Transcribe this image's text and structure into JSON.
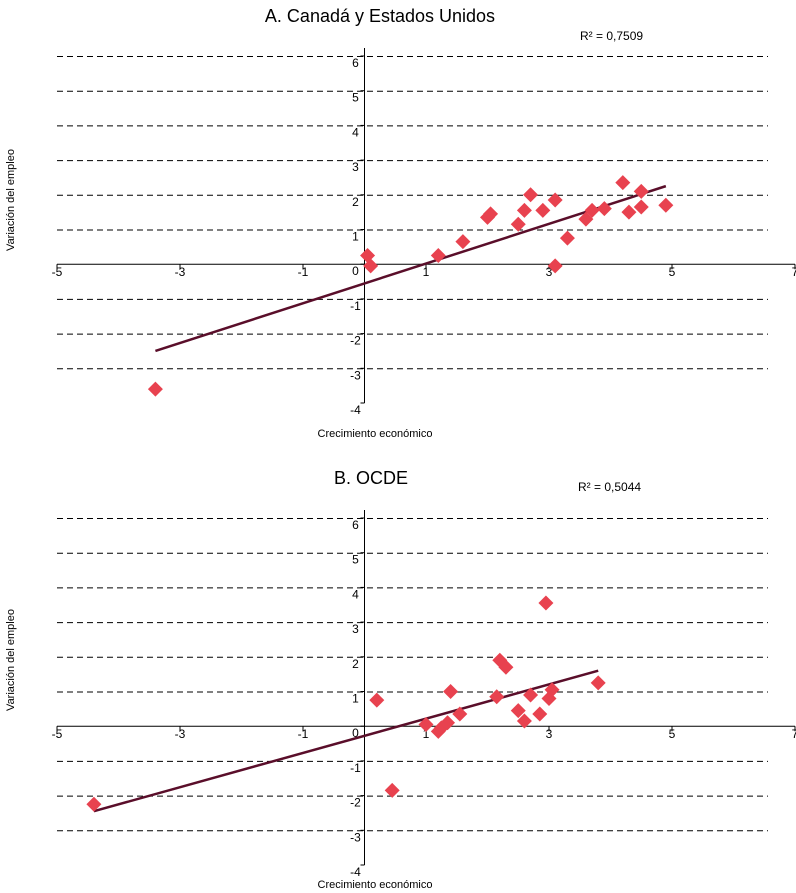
{
  "colors": {
    "marker": "#e8424f",
    "trendline": "#5a0e2a",
    "axis": "#000000",
    "grid": "#000000"
  },
  "chart_data": [
    {
      "type": "scatter",
      "title": "A. Canadá y Estados Unidos",
      "r2_label": "R² = 0,7509",
      "xlabel": "Crecimiento económico",
      "ylabel": "Variación del empleo",
      "xlim": [
        -5,
        7
      ],
      "ylim": [
        -4,
        6
      ],
      "x_ticks": [
        "-5",
        "-3",
        "-1",
        "1",
        "3",
        "5",
        "7"
      ],
      "y_ticks": [
        "-4",
        "-3",
        "-2",
        "-1",
        "0",
        "1",
        "2",
        "3",
        "4",
        "5",
        "6"
      ],
      "grid": "horizontal dashed",
      "trendline": {
        "x": [
          -3.4,
          4.9
        ],
        "y": [
          -2.5,
          2.25
        ]
      },
      "points": [
        {
          "x": -3.4,
          "y": -3.6
        },
        {
          "x": 0.05,
          "y": 0.25
        },
        {
          "x": 0.1,
          "y": -0.05
        },
        {
          "x": 1.2,
          "y": 0.25
        },
        {
          "x": 1.6,
          "y": 0.65
        },
        {
          "x": 2.0,
          "y": 1.35
        },
        {
          "x": 2.05,
          "y": 1.45
        },
        {
          "x": 2.5,
          "y": 1.15
        },
        {
          "x": 2.6,
          "y": 1.55
        },
        {
          "x": 2.7,
          "y": 2.0
        },
        {
          "x": 2.9,
          "y": 1.55
        },
        {
          "x": 3.1,
          "y": 1.85
        },
        {
          "x": 3.1,
          "y": -0.05
        },
        {
          "x": 3.3,
          "y": 0.75
        },
        {
          "x": 3.6,
          "y": 1.3
        },
        {
          "x": 3.7,
          "y": 1.55
        },
        {
          "x": 3.9,
          "y": 1.6
        },
        {
          "x": 4.2,
          "y": 2.35
        },
        {
          "x": 4.3,
          "y": 1.5
        },
        {
          "x": 4.5,
          "y": 2.1
        },
        {
          "x": 4.5,
          "y": 1.65
        },
        {
          "x": 4.9,
          "y": 1.7
        }
      ]
    },
    {
      "type": "scatter",
      "title": "B. OCDE",
      "r2_label": "R² = 0,5044",
      "xlabel": "Crecimiento económico",
      "ylabel": "Variación del empleo",
      "xlim": [
        -5,
        7
      ],
      "ylim": [
        -4,
        6
      ],
      "x_ticks": [
        "-5",
        "-3",
        "-1",
        "1",
        "3",
        "5",
        "7"
      ],
      "y_ticks": [
        "-4",
        "-3",
        "-2",
        "-1",
        "0",
        "1",
        "2",
        "3",
        "4",
        "5",
        "6"
      ],
      "grid": "horizontal dashed",
      "trendline": {
        "x": [
          -4.4,
          3.8
        ],
        "y": [
          -2.45,
          1.6
        ]
      },
      "points": [
        {
          "x": -4.4,
          "y": -2.25
        },
        {
          "x": 0.2,
          "y": 0.75
        },
        {
          "x": 0.45,
          "y": -1.85
        },
        {
          "x": 1.0,
          "y": 0.05
        },
        {
          "x": 1.2,
          "y": -0.15
        },
        {
          "x": 1.25,
          "y": -0.05
        },
        {
          "x": 1.35,
          "y": 0.1
        },
        {
          "x": 1.4,
          "y": 1.0
        },
        {
          "x": 1.55,
          "y": 0.35
        },
        {
          "x": 2.15,
          "y": 0.85
        },
        {
          "x": 2.2,
          "y": 1.9
        },
        {
          "x": 2.3,
          "y": 1.7
        },
        {
          "x": 2.5,
          "y": 0.45
        },
        {
          "x": 2.6,
          "y": 0.15
        },
        {
          "x": 2.7,
          "y": 0.9
        },
        {
          "x": 2.85,
          "y": 0.35
        },
        {
          "x": 2.95,
          "y": 3.55
        },
        {
          "x": 3.0,
          "y": 0.8
        },
        {
          "x": 3.05,
          "y": 1.05
        },
        {
          "x": 3.8,
          "y": 1.25
        }
      ]
    }
  ]
}
